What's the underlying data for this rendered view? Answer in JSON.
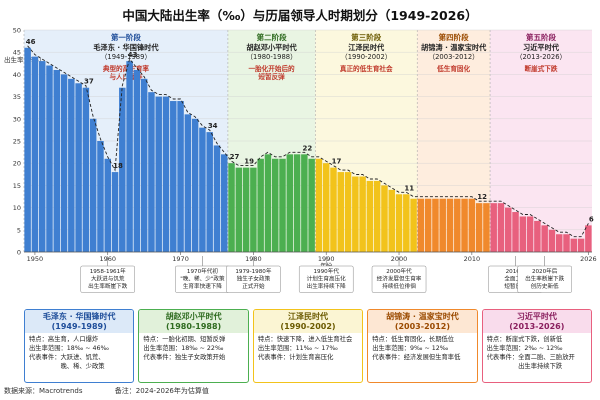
{
  "title": "中国大陆出生率（‰）与历届领导人时期划分（1949-2026）",
  "chart_data": {
    "type": "bar",
    "ylabel": "出生率（‰）",
    "xlabel": "年份",
    "ylim": [
      0,
      50
    ],
    "yticks": [
      0,
      5,
      10,
      15,
      20,
      25,
      30,
      35,
      40,
      45,
      50
    ],
    "xticks": [
      "1950",
      "1960",
      "1970",
      "1980",
      "1990",
      "2000",
      "2010",
      "2026"
    ],
    "years": [
      1949,
      1950,
      1951,
      1952,
      1953,
      1954,
      1955,
      1956,
      1957,
      1958,
      1959,
      1960,
      1961,
      1962,
      1963,
      1964,
      1965,
      1966,
      1967,
      1968,
      1969,
      1970,
      1971,
      1972,
      1973,
      1974,
      1975,
      1976,
      1977,
      1978,
      1979,
      1980,
      1981,
      1982,
      1983,
      1984,
      1985,
      1986,
      1987,
      1988,
      1989,
      1990,
      1991,
      1992,
      1993,
      1994,
      1995,
      1996,
      1997,
      1998,
      1999,
      2000,
      2001,
      2002,
      2003,
      2004,
      2005,
      2006,
      2007,
      2008,
      2009,
      2010,
      2011,
      2012,
      2013,
      2014,
      2015,
      2016,
      2017,
      2018,
      2019,
      2020,
      2021,
      2022,
      2023,
      2024,
      2025,
      2026
    ],
    "values": [
      46,
      44,
      43,
      42,
      41,
      40,
      39,
      38,
      37,
      30,
      25,
      21,
      18,
      37,
      43,
      41,
      39,
      36,
      35,
      35,
      34,
      34,
      31,
      30,
      28,
      27,
      24,
      22,
      20,
      19,
      19,
      19,
      21,
      22,
      21,
      21,
      22,
      22,
      22,
      21,
      21,
      20,
      19,
      18,
      18,
      17,
      17,
      16,
      16,
      15,
      14,
      13,
      13,
      12,
      12,
      12,
      12,
      12,
      12,
      12,
      12,
      12,
      11,
      11,
      11,
      11,
      10,
      9,
      8,
      8,
      7,
      6,
      5,
      4,
      4,
      3,
      3,
      6
    ],
    "value_labels": [
      {
        "year": 1949,
        "label": "46"
      },
      {
        "year": 1961,
        "label": "18"
      },
      {
        "year": 1957,
        "label": "37"
      },
      {
        "year": 1963,
        "label": "43"
      },
      {
        "year": 1974,
        "label": "34"
      },
      {
        "year": 1977,
        "label": "27"
      },
      {
        "year": 1979,
        "label": "19"
      },
      {
        "year": 1987,
        "label": "22"
      },
      {
        "year": 1991,
        "label": "17"
      },
      {
        "year": 2001,
        "label": "11"
      },
      {
        "year": 2011,
        "label": "12"
      },
      {
        "year": 2026,
        "label": "6"
      }
    ]
  },
  "eras": [
    {
      "stage": "第一阶段",
      "leader": "毛泽东 · 华国锋时代",
      "years": "（1949-1989）",
      "feature": "典型的高生育率\n与人口爆炸",
      "from": 1949,
      "to": 1976,
      "bg": "#dce9f8",
      "fg": "#1f4e9a",
      "bar": "#3f7fd1",
      "feature_color": "#c0392b"
    },
    {
      "stage": "第二阶段",
      "leader": "胡赵邓小平时代",
      "years": "（1980-1988）",
      "feature": "一胎化开始后的\n短暂反弹",
      "from": 1977,
      "to": 1988,
      "bg": "#e1f1da",
      "fg": "#2e6b1f",
      "bar": "#4caf50",
      "feature_color": "#c0392b"
    },
    {
      "stage": "第三阶段",
      "leader": "江泽民时代",
      "years": "（1990-2002）",
      "feature": "真正的低生育社会",
      "from": 1989,
      "to": 2002,
      "bg": "#fbf5d3",
      "fg": "#6b5a00",
      "bar": "#f2c31b",
      "feature_color": "#c0392b"
    },
    {
      "stage": "第四阶段",
      "leader": "胡锦涛 · 温家宝时代",
      "years": "（2003-2012）",
      "feature": "低生育固化",
      "from": 2003,
      "to": 2012,
      "bg": "#fde7d3",
      "fg": "#9a4a00",
      "bar": "#f0892c",
      "feature_color": "#c0392b"
    },
    {
      "stage": "第五阶段",
      "leader": "习近平时代",
      "years": "（2013-2026）",
      "feature": "断崖式下跌",
      "from": 2013,
      "to": 2026,
      "bg": "#f9dcec",
      "fg": "#8a1f5e",
      "bar": "#e8607e",
      "feature_color": "#c0392b"
    }
  ],
  "annotations": [
    {
      "year": 1960,
      "text": "1958-1961年\n大跃进与饥荒\n出生率断崖下跌"
    },
    {
      "year": 1973,
      "text": "1970年代初\n\"晚、稀、少\"政策\n生育率快速下降"
    },
    {
      "year": 1980,
      "text": "1979-1980年\n独生子女政策\n正式开始"
    },
    {
      "year": 1990,
      "text": "1990年代\n计划生育高压化\n出生率持续下降"
    },
    {
      "year": 2000,
      "text": "2000年代\n经济发展但生育率\n持续低位徘徊"
    },
    {
      "year": 2016,
      "text": "2016年\n全面二胎\n短暂反弹"
    },
    {
      "year": 2020,
      "text": "2020年后\n出生率断崖下跌\n创历史新低"
    }
  ],
  "panels": [
    {
      "title": "毛泽东 · 华国锋时代",
      "years": "(1949-1989)",
      "lines": [
        "特点：高生育，人口爆炸",
        "出生率范围：18‰ ~ 46‰",
        "代表事件：大跃进、饥荒、",
        "　　　　　晚、稀、少政策"
      ]
    },
    {
      "title": "胡赵邓小平时代",
      "years": "(1980-1988)",
      "lines": [
        "特点：一胎化初期、短暂反弹",
        "出生率范围：18‰ ~ 22‰",
        "代表事件：独生子女政策开始"
      ]
    },
    {
      "title": "江泽民时代",
      "years": "(1990-2002)",
      "lines": [
        "特点：快速下降，进入低生育社会",
        "出生率范围：11‰ ~ 17‰",
        "代表事件：计划生育高压化"
      ]
    },
    {
      "title": "胡锦涛 · 温家宝时代",
      "years": "(2003-2012)",
      "lines": [
        "特点：低生育固化，长期低位",
        "出生率范围：9‰ ~ 12‰",
        "代表事件：经济发展但生育率低"
      ]
    },
    {
      "title": "习近平时代",
      "years": "(2013-2026)",
      "lines": [
        "特点：断崖式下跌，创新低",
        "出生率范围：2‰ ~ 12‰",
        "代表事件：全面二胎、三胎放开",
        "　　　　　出生率持续下跌"
      ]
    }
  ],
  "footer": {
    "source": "数据来源：Macrotrends",
    "note": "备注：2024-2026年为估算值"
  }
}
